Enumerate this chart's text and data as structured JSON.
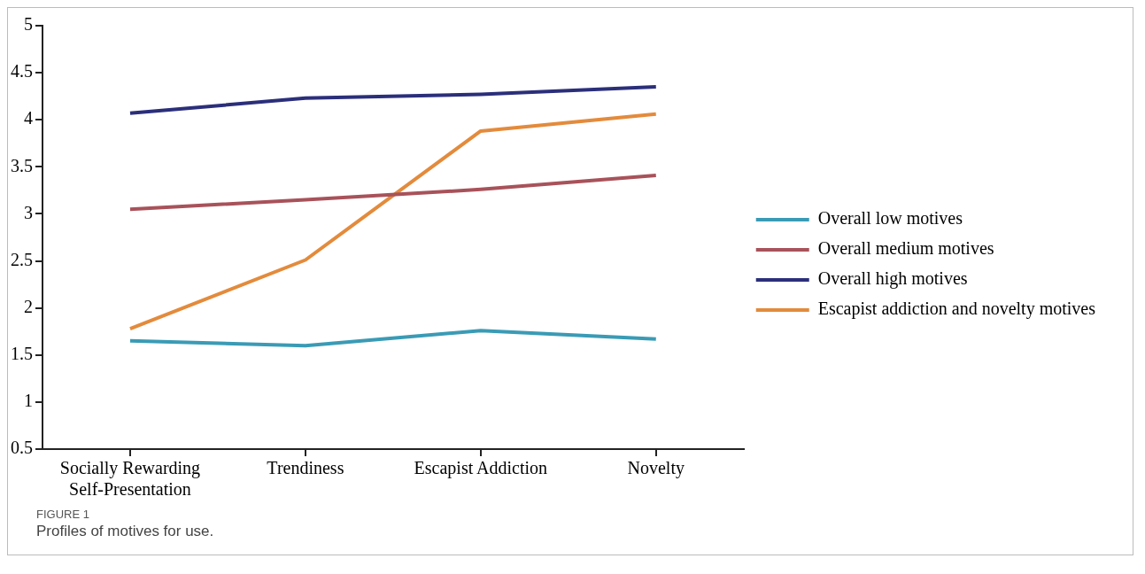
{
  "chart_data": {
    "type": "line",
    "title": "FIGURE 1",
    "subtitle": "Profiles of motives for use.",
    "categories": [
      "Socially Rewarding\nSelf-Presentation",
      "Trendiness",
      "Escapist Addiction",
      "Novelty"
    ],
    "series": [
      {
        "name": "Overall low motives",
        "color": "#3a9bb5",
        "values": [
          1.65,
          1.6,
          1.76,
          1.67
        ]
      },
      {
        "name": "Overall medium motives",
        "color": "#a8525a",
        "values": [
          3.05,
          3.15,
          3.26,
          3.41
        ]
      },
      {
        "name": "Overall high motives",
        "color": "#2b2f7a",
        "values": [
          4.07,
          4.23,
          4.27,
          4.35
        ]
      },
      {
        "name": "Escapist addiction and novelty motives",
        "color": "#e38b3c",
        "values": [
          1.78,
          2.51,
          3.88,
          4.06
        ]
      }
    ],
    "ylim": [
      0.5,
      5
    ],
    "yticks": [
      0.5,
      1,
      1.5,
      2,
      2.5,
      3,
      3.5,
      4,
      4.5,
      5
    ],
    "grid": false,
    "legend": "right",
    "marker": "none",
    "line_style": "solid"
  }
}
